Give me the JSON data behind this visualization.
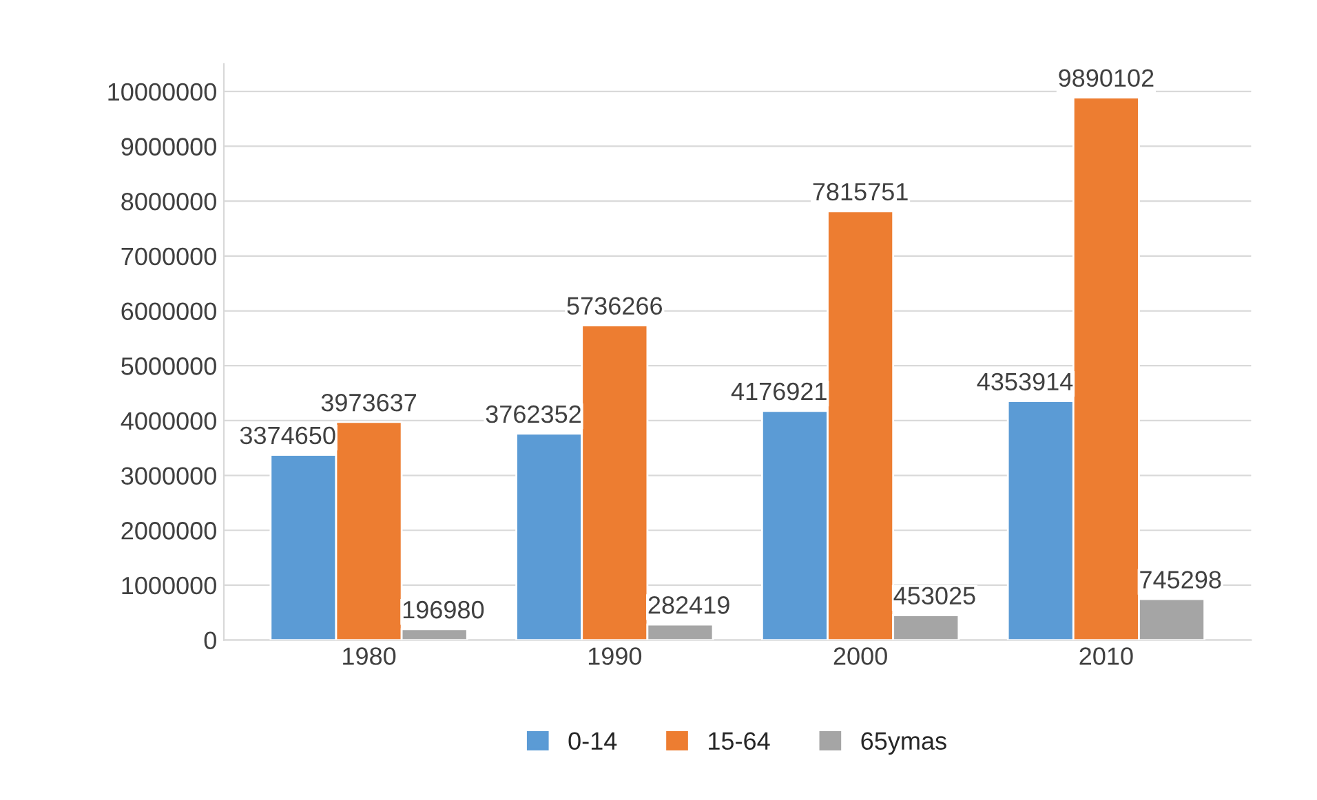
{
  "chart_data": {
    "type": "bar",
    "categories": [
      "1980",
      "1990",
      "2000",
      "2010"
    ],
    "series": [
      {
        "name": "0-14",
        "color": "#5b9bd5",
        "values": [
          3374650,
          3762352,
          4176921,
          4353914
        ]
      },
      {
        "name": "15-64",
        "color": "#ed7d31",
        "values": [
          3973637,
          5736266,
          7815751,
          9890102
        ]
      },
      {
        "name": "65ymas",
        "color": "#a5a5a5",
        "values": [
          196980,
          282419,
          453025,
          745298
        ]
      }
    ],
    "ylim": [
      0,
      10500000
    ],
    "yticks": [
      0,
      1000000,
      2000000,
      3000000,
      4000000,
      5000000,
      6000000,
      7000000,
      8000000,
      9000000,
      10000000
    ],
    "grid": "y",
    "legend": "bottom",
    "data_labels": true
  }
}
